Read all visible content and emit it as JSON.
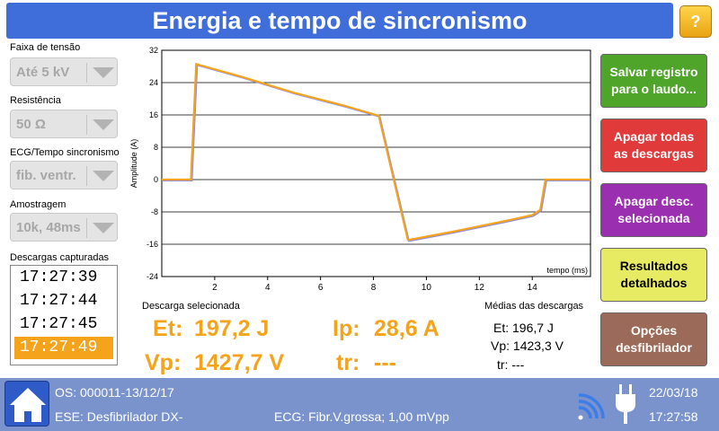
{
  "header": {
    "title": "Energia e tempo de sincronismo",
    "help_label": "?"
  },
  "left_panel": {
    "voltage": {
      "label": "Faixa de tensão",
      "value": "Até 5 kV"
    },
    "resistance": {
      "label": "Resistência",
      "value": "50 Ω"
    },
    "ecg": {
      "label": "ECG/Tempo sincronismo",
      "value": "fib. ventr."
    },
    "sampling": {
      "label": "Amostragem",
      "value": "10k, 48ms"
    },
    "captures": {
      "label": "Descargas capturadas",
      "items": [
        "17:27:39",
        "17:27:44",
        "17:27:45",
        "17:27:49"
      ],
      "selected_index": 3
    }
  },
  "chart_data": {
    "type": "line",
    "xlabel": "tempo (ms)",
    "ylabel": "Amplitude (A)",
    "xlim": [
      0,
      16.2
    ],
    "ylim": [
      -24,
      32
    ],
    "x_ticks": [
      "2",
      "4",
      "6",
      "8",
      "10",
      "12",
      "14"
    ],
    "y_ticks": [
      "32",
      "24",
      "16",
      "8",
      "0",
      "-8",
      "-16",
      "-24"
    ],
    "grid": "horizontal",
    "colors": {
      "line_main": "#f5a31a",
      "line_shadow": "#8c8cf0"
    },
    "series": [
      {
        "x": [
          0,
          1.1,
          1.3,
          1.4,
          3,
          5,
          7,
          8.2,
          9.3,
          9.35,
          11,
          13,
          14,
          14.3,
          14.5,
          16.2
        ],
        "y": [
          0,
          0,
          28.6,
          28.4,
          25.5,
          21.5,
          18.1,
          15.8,
          -14.9,
          -14.9,
          -12.9,
          -10.2,
          -8.8,
          -7.5,
          0,
          0
        ]
      }
    ]
  },
  "selected": {
    "title": "Descarga selecionada",
    "et_label": "Et:",
    "et_value": "197,2 J",
    "ip_label": "Ip:",
    "ip_value": "28,6 A",
    "vp_label": "Vp:",
    "vp_value": "1427,7 V",
    "tr_label": "tr:",
    "tr_value": "---"
  },
  "averages": {
    "title": "Médias das descargas",
    "et": "Et: 196,7 J",
    "vp": "Vp: 1423,3 V",
    "tr": "tr: ---"
  },
  "buttons": {
    "save": {
      "line1": "Salvar registro",
      "line2": "para o laudo...",
      "color": "#4fa52a"
    },
    "delete_all": {
      "line1": "Apagar todas",
      "line2": "as descargas",
      "color": "#e03a3a"
    },
    "delete_sel": {
      "line1": "Apagar desc.",
      "line2": "selecionada",
      "color": "#9a2fb0"
    },
    "results": {
      "line1": "Resultados",
      "line2": "detalhados",
      "color": "#e7ea63"
    },
    "options": {
      "line1": "Opções",
      "line2": "desfibrilador",
      "color": "#9b6a58"
    }
  },
  "status": {
    "os": "OS: 000011-13/12/17",
    "ese": "ESE: Desfibrilador DX-",
    "ecg": "ECG: Fibr.V.grossa; 1,00 mVpp",
    "date": "22/03/18",
    "time": "17:27:58"
  }
}
